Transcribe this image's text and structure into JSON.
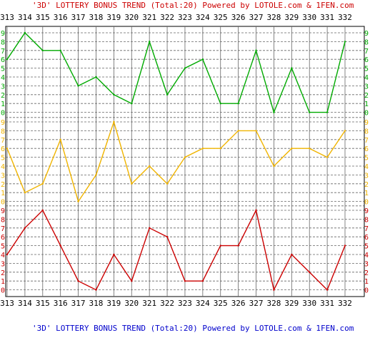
{
  "title_top": "'3D' LOTTERY BONUS TREND (Total:20)  Powered by LOTOLE.com & 1FEN.com",
  "title_bottom": "'3D' LOTTERY BONUS TREND (Total:20)  Powered by LOTOLE.com & 1FEN.com",
  "colors": {
    "title_top": "#cc0000",
    "title_bottom": "#0000cc",
    "grid": "#666666",
    "frame": "#000000",
    "green": "#00aa00",
    "yellow": "#f0b400",
    "red": "#cc0000"
  },
  "chart_data": {
    "type": "line",
    "categories": [
      "313",
      "314",
      "315",
      "316",
      "317",
      "318",
      "319",
      "320",
      "321",
      "322",
      "323",
      "324",
      "325",
      "326",
      "327",
      "328",
      "329",
      "330",
      "331",
      "332"
    ],
    "y_ticks": [
      "0",
      "1",
      "2",
      "3",
      "4",
      "5",
      "6",
      "7",
      "8",
      "9"
    ],
    "ylim": [
      0,
      9
    ],
    "grid": true,
    "panels": [
      {
        "position": "top",
        "color_key": "green",
        "values": [
          6,
          9,
          7,
          7,
          3,
          4,
          2,
          1,
          8,
          2,
          5,
          6,
          1,
          1,
          7,
          0,
          5,
          0,
          0,
          8
        ]
      },
      {
        "position": "middle",
        "color_key": "yellow",
        "values": [
          6,
          1,
          2,
          7,
          0,
          3,
          9,
          2,
          4,
          2,
          5,
          6,
          6,
          8,
          8,
          4,
          6,
          6,
          5,
          8
        ]
      },
      {
        "position": "bottom",
        "color_key": "red",
        "values": [
          4,
          7,
          9,
          5,
          1,
          0,
          4,
          1,
          7,
          6,
          1,
          1,
          5,
          5,
          9,
          0,
          4,
          2,
          0,
          5
        ]
      }
    ]
  }
}
